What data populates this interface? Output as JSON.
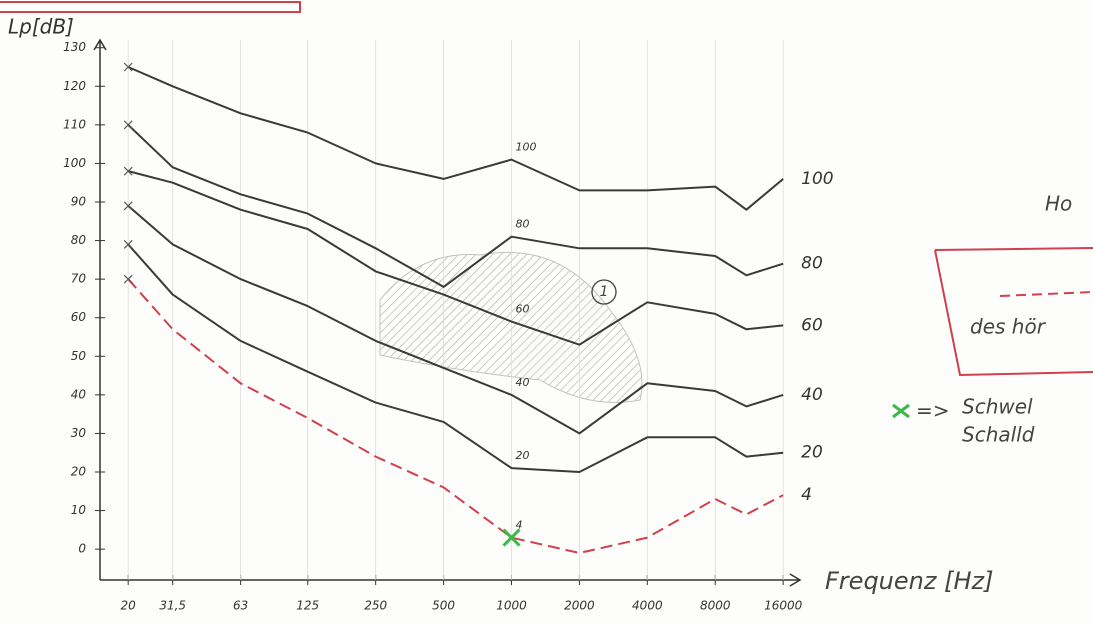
{
  "chart_data": {
    "type": "line",
    "title": "Lp[dB]",
    "x_label": "Frequenz [Hz]",
    "x": [
      20,
      31.5,
      63,
      125,
      250,
      500,
      1000,
      2000,
      4000,
      8000,
      11000,
      16000
    ],
    "x_log": true,
    "xlim": [
      15,
      19000
    ],
    "xticks": [
      {
        "value": 20,
        "label": "20"
      },
      {
        "value": 31.5,
        "label": "31,5"
      },
      63,
      125,
      250,
      500,
      1000,
      2000,
      4000,
      8000,
      16000
    ],
    "ylim": [
      -8,
      132
    ],
    "yticks": [
      0,
      10,
      20,
      30,
      40,
      50,
      60,
      70,
      80,
      90,
      100,
      110,
      120,
      130
    ],
    "series": [
      {
        "name": "100",
        "color": "#3a3a3a",
        "style": "solid",
        "values": [
          125,
          120,
          113,
          108,
          100,
          96,
          101,
          93,
          93,
          94,
          88,
          96
        ]
      },
      {
        "name": "80",
        "color": "#3a3a3a",
        "style": "solid",
        "values": [
          110,
          99,
          92,
          87,
          78,
          68,
          81,
          78,
          78,
          76,
          71,
          74
        ]
      },
      {
        "name": "60",
        "color": "#3a3a3a",
        "style": "solid",
        "values": [
          98,
          95,
          88,
          83,
          72,
          66,
          59,
          53,
          64,
          61,
          57,
          58
        ]
      },
      {
        "name": "40",
        "color": "#3a3a3a",
        "style": "solid",
        "values": [
          89,
          79,
          70,
          63,
          54,
          47,
          40,
          30,
          43,
          41,
          37,
          40
        ]
      },
      {
        "name": "20",
        "color": "#3a3a3a",
        "style": "solid",
        "values": [
          79,
          66,
          54,
          46,
          38,
          33,
          21,
          20,
          29,
          29,
          24,
          25
        ]
      },
      {
        "name": "4",
        "color": "#d0404f",
        "style": "dashed",
        "values": [
          70,
          57,
          43,
          34,
          24,
          16,
          3,
          -1,
          3,
          13,
          9,
          14
        ]
      }
    ],
    "marker_color": "#3cb84a",
    "annotations": {
      "region": "1",
      "heading": "Ho",
      "box_text": "des hör",
      "arrow": "=>",
      "legend_line1": "Schwel",
      "legend_line2": "Schalld"
    }
  }
}
